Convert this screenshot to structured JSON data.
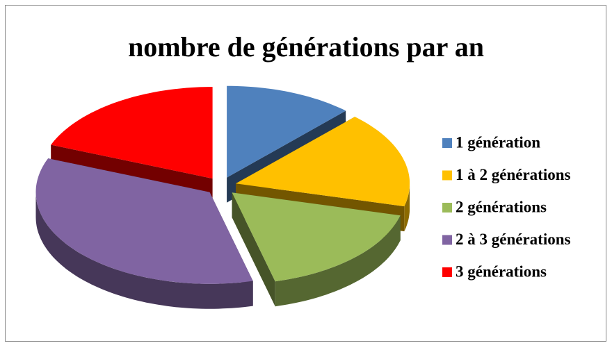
{
  "chart_data": {
    "type": "pie",
    "title": "nombre de générations par an",
    "categories": [
      "1 génération",
      "1 à 2 générations",
      "2 générations",
      "2 à 3 générations",
      "3 générations"
    ],
    "values": [
      12,
      17,
      17,
      35,
      19
    ],
    "colors": [
      "#4f81bd",
      "#ffc000",
      "#9bbb59",
      "#8064a2",
      "#ff0000"
    ],
    "legend": "right"
  }
}
